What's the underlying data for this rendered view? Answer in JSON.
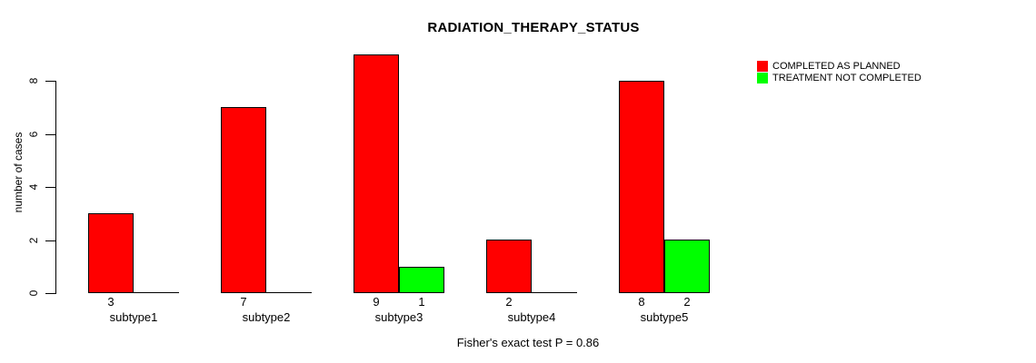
{
  "chart_data": {
    "type": "bar",
    "title": "RADIATION_THERAPY_STATUS",
    "xlabel": "",
    "ylabel": "number of cases",
    "categories": [
      "subtype1",
      "subtype2",
      "subtype3",
      "subtype4",
      "subtype5"
    ],
    "series": [
      {
        "name": "COMPLETED AS PLANNED",
        "color": "#ff0000",
        "values": [
          3,
          7,
          9,
          2,
          8
        ]
      },
      {
        "name": "TREATMENT NOT COMPLETED",
        "color": "#00ff00",
        "values": [
          0,
          0,
          1,
          0,
          2
        ]
      }
    ],
    "yticks": [
      0,
      2,
      4,
      6,
      8
    ],
    "ylim": [
      0,
      9
    ],
    "grid": false,
    "legend_position": "top-right",
    "bar_value_labels_shown": true,
    "annotation": "Fisher's exact test P = 0.86"
  }
}
